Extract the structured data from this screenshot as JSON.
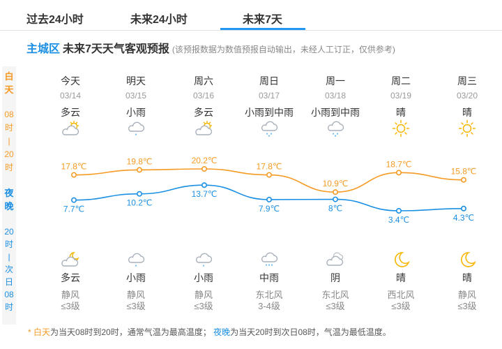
{
  "tabs": [
    {
      "label": "过去24小时",
      "active": false
    },
    {
      "label": "未来24小时",
      "active": false
    },
    {
      "label": "未来7天",
      "active": true
    }
  ],
  "header": {
    "region": "主城区",
    "title": "未来7天天气客观预报",
    "note": "(该预报数据为数值预报自动输出，未经人工订正，仅供参考)"
  },
  "side": {
    "day_label": [
      "白",
      "天"
    ],
    "day_time": [
      "08",
      "时",
      "|",
      "20",
      "时"
    ],
    "night_label": [
      "夜",
      "晚"
    ],
    "night_time": [
      "20",
      "时",
      "|",
      "次",
      "日",
      "08",
      "时"
    ]
  },
  "days": [
    {
      "name": "今天",
      "date": "03/14",
      "day_cond": "多云",
      "day_icon": "partly-cloudy-icon",
      "night_icon": "partly-cloudy-night-icon",
      "night_cond": "多云",
      "wind_dir": "静风",
      "wind_lvl": "≤3级"
    },
    {
      "name": "明天",
      "date": "03/15",
      "day_cond": "小雨",
      "day_icon": "light-rain-icon",
      "night_icon": "light-rain-icon",
      "night_cond": "小雨",
      "wind_dir": "静风",
      "wind_lvl": "≤3级"
    },
    {
      "name": "周六",
      "date": "03/16",
      "day_cond": "多云",
      "day_icon": "partly-cloudy-icon",
      "night_icon": "light-rain-icon",
      "night_cond": "小雨",
      "wind_dir": "静风",
      "wind_lvl": "≤3级"
    },
    {
      "name": "周日",
      "date": "03/17",
      "day_cond": "小雨到中雨",
      "day_icon": "rain-icon",
      "night_icon": "moderate-rain-icon",
      "night_cond": "中雨",
      "wind_dir": "东北风",
      "wind_lvl": "3-4级"
    },
    {
      "name": "周一",
      "date": "03/18",
      "day_cond": "小雨到中雨",
      "day_icon": "rain-icon",
      "night_icon": "overcast-icon",
      "night_cond": "阴",
      "wind_dir": "东北风",
      "wind_lvl": "≤3级"
    },
    {
      "name": "周二",
      "date": "03/19",
      "day_cond": "晴",
      "day_icon": "sun-icon",
      "night_icon": "moon-icon",
      "night_cond": "晴",
      "wind_dir": "西北风",
      "wind_lvl": "≤3级"
    },
    {
      "name": "周三",
      "date": "03/20",
      "day_cond": "晴",
      "day_icon": "sun-icon",
      "night_icon": "moon-icon",
      "night_cond": "晴",
      "wind_dir": "静风",
      "wind_lvl": "≤3级"
    }
  ],
  "chart_data": {
    "type": "line",
    "categories": [
      "今天",
      "明天",
      "周六",
      "周日",
      "周一",
      "周二",
      "周三"
    ],
    "unit": "℃",
    "series": [
      {
        "key": "high",
        "color": "#f59a23",
        "values": [
          17.8,
          19.8,
          20.2,
          17.8,
          10.9,
          18.7,
          15.8
        ],
        "labels": [
          "17.8℃",
          "19.8℃",
          "20.2℃",
          "17.8℃",
          "10.9℃",
          "18.7℃",
          "15.8℃"
        ]
      },
      {
        "key": "low",
        "color": "#1a8fe3",
        "values": [
          7.7,
          10.2,
          13.7,
          7.9,
          8,
          3.4,
          4.3
        ],
        "labels": [
          "7.7℃",
          "10.2℃",
          "13.7℃",
          "7.9℃",
          "8℃",
          "3.4℃",
          "4.3℃"
        ]
      }
    ]
  },
  "footnote": {
    "star": "*",
    "day_term": "白天",
    "day_text": "为当天08时到20时，通常气温为最高温度；",
    "night_term": "夜晚",
    "night_text": "为当天20时到次日08时，气温为最低温度。"
  },
  "colors": {
    "accent": "#1a8fe3",
    "day": "#f59a23",
    "night": "#1a8fe3"
  }
}
